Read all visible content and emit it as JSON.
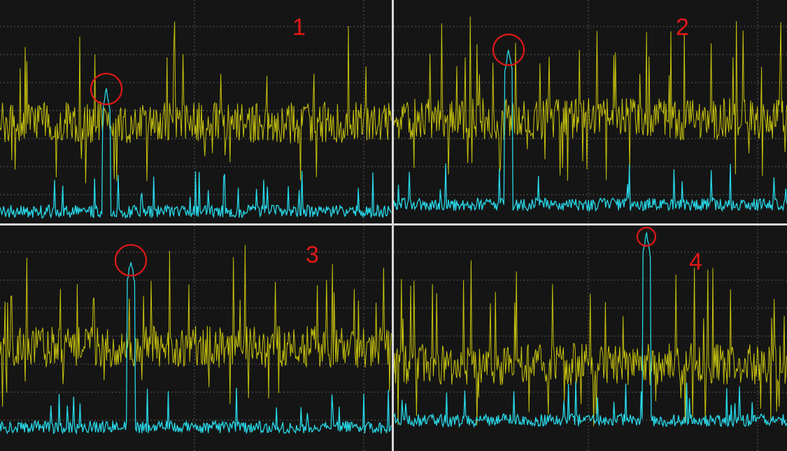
{
  "colors": {
    "background": "#151515",
    "grid": "#5a5a5a",
    "divider": "#d8d8d8",
    "yellow_trace": "#c8c40e",
    "cyan_trace": "#28d8e8",
    "marker": "#e01818"
  },
  "panels": [
    {
      "id": 1,
      "label": "1",
      "cyan_spike_level": 0.63,
      "yellow_level": 0.45
    },
    {
      "id": 2,
      "label": "2",
      "cyan_spike_level": 0.81,
      "yellow_level": 0.47
    },
    {
      "id": 3,
      "label": "3",
      "cyan_spike_level": 0.88,
      "yellow_level": 0.42
    },
    {
      "id": 4,
      "label": "4",
      "cyan_spike_level": 1.0,
      "yellow_level": 0.3
    }
  ]
}
